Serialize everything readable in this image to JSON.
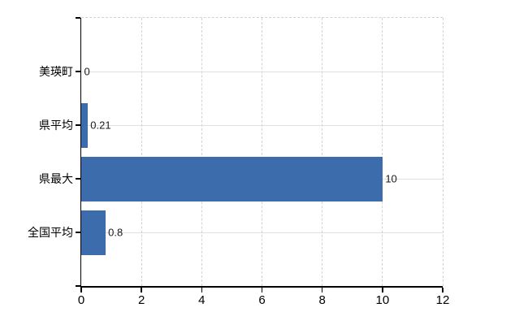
{
  "chart_data": {
    "type": "bar",
    "orientation": "horizontal",
    "title": "",
    "xlabel": "",
    "ylabel": "",
    "categories": [
      "美瑛町",
      "県平均",
      "県最大",
      "全国平均"
    ],
    "values": [
      0,
      0.21,
      10,
      0.8
    ],
    "value_labels": [
      "0",
      "0.21",
      "10",
      "0.8"
    ],
    "xlim": [
      0,
      12
    ],
    "x_ticks": [
      "0",
      "2",
      "4",
      "6",
      "8",
      "10",
      "12"
    ],
    "x_tick_values": [
      0,
      2,
      4,
      6,
      8,
      10,
      12
    ],
    "grid": {
      "vertical": "dashed",
      "horizontal": "solid",
      "visible": true
    },
    "legend": false,
    "colors": {
      "bar": "#3c6cac",
      "axis": "#000000",
      "gridline_vertical": "#d5d0d5",
      "gridline_horizontal": "#dce2dc",
      "plot_border": "#d5d0d5",
      "background": "#ffffff",
      "value_label": "#1a1a1a",
      "tick_label": "#000000"
    }
  }
}
